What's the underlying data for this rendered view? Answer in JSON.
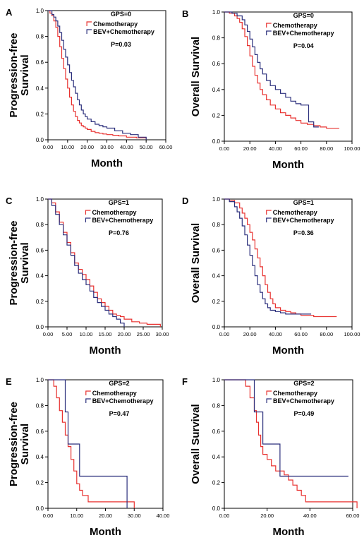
{
  "legend": {
    "chemo": "Chemotherapy",
    "bev": "BEV+Chemotherapy"
  },
  "colors": {
    "chemo": "#e8312f",
    "bev": "#2b2f7c",
    "axis": "#000000"
  },
  "chart_data": [
    {
      "panel": "A",
      "type": "line",
      "title": "GPS=0",
      "pvalue": "P=0.03",
      "xlabel": "Month",
      "ylabel": [
        "Progression-free",
        "Survival"
      ],
      "xlim": [
        0,
        60
      ],
      "ylim": [
        0,
        1
      ],
      "xticks": [
        "0.00",
        "10.00",
        "20.00",
        "30.00",
        "40.00",
        "50.00",
        "60.00"
      ],
      "yticks": [
        "0.0",
        "0.2",
        "0.4",
        "0.6",
        "0.8",
        "1.0"
      ],
      "series": [
        {
          "name": "Chemotherapy",
          "x": [
            0,
            1,
            2,
            3,
            4,
            5,
            6,
            7,
            8,
            9,
            10,
            11,
            12,
            13,
            14,
            15,
            16,
            17,
            18,
            19,
            20,
            22,
            24,
            26,
            28,
            30,
            33,
            36,
            40,
            45,
            50
          ],
          "y": [
            1.0,
            0.98,
            0.96,
            0.92,
            0.87,
            0.8,
            0.72,
            0.63,
            0.55,
            0.47,
            0.4,
            0.33,
            0.27,
            0.22,
            0.18,
            0.15,
            0.13,
            0.11,
            0.1,
            0.09,
            0.08,
            0.065,
            0.055,
            0.05,
            0.045,
            0.04,
            0.035,
            0.03,
            0.02,
            0.015,
            0.01
          ]
        },
        {
          "name": "BEV+Chemotherapy",
          "x": [
            0,
            2,
            3,
            4,
            5,
            6,
            7,
            8,
            9,
            10,
            11,
            12,
            13,
            14,
            15,
            16,
            17,
            18,
            19,
            20,
            22,
            24,
            26,
            28,
            30,
            34,
            38,
            42,
            46,
            50
          ],
          "y": [
            1.0,
            0.97,
            0.95,
            0.92,
            0.88,
            0.83,
            0.77,
            0.7,
            0.64,
            0.58,
            0.52,
            0.46,
            0.41,
            0.36,
            0.31,
            0.27,
            0.23,
            0.2,
            0.18,
            0.16,
            0.14,
            0.12,
            0.11,
            0.1,
            0.09,
            0.07,
            0.05,
            0.04,
            0.02,
            0.0
          ]
        }
      ]
    },
    {
      "panel": "B",
      "type": "line",
      "title": "GPS=0",
      "pvalue": "P=0.04",
      "xlabel": "Month",
      "ylabel": [
        "Overall Survival"
      ],
      "xlim": [
        0,
        100
      ],
      "ylim": [
        0,
        1
      ],
      "xticks": [
        "0.00",
        "20.00",
        "40.00",
        "60.00",
        "80.00",
        "100.00"
      ],
      "yticks": [
        "0.0",
        "0.2",
        "0.4",
        "0.6",
        "0.8",
        "1.0"
      ],
      "series": [
        {
          "name": "Chemotherapy",
          "x": [
            0,
            4,
            8,
            10,
            12,
            14,
            16,
            18,
            20,
            22,
            24,
            26,
            28,
            30,
            33,
            36,
            40,
            44,
            48,
            52,
            56,
            60,
            65,
            70,
            75,
            80,
            90
          ],
          "y": [
            1.0,
            0.99,
            0.97,
            0.95,
            0.92,
            0.87,
            0.81,
            0.74,
            0.66,
            0.58,
            0.51,
            0.45,
            0.4,
            0.36,
            0.32,
            0.28,
            0.25,
            0.22,
            0.2,
            0.18,
            0.16,
            0.14,
            0.13,
            0.12,
            0.11,
            0.1,
            0.1
          ]
        },
        {
          "name": "BEV+Chemotherapy",
          "x": [
            0,
            6,
            10,
            14,
            16,
            18,
            20,
            22,
            24,
            26,
            28,
            30,
            33,
            36,
            40,
            44,
            48,
            52,
            56,
            60,
            64,
            66,
            68,
            70,
            74
          ],
          "y": [
            1.0,
            0.99,
            0.97,
            0.94,
            0.9,
            0.85,
            0.79,
            0.73,
            0.67,
            0.61,
            0.56,
            0.52,
            0.47,
            0.43,
            0.4,
            0.37,
            0.34,
            0.31,
            0.29,
            0.28,
            0.28,
            0.15,
            0.15,
            0.11,
            0.11
          ]
        }
      ]
    },
    {
      "panel": "C",
      "type": "line",
      "title": "GPS=1",
      "pvalue": "P=0.76",
      "xlabel": "Month",
      "ylabel": [
        "Progression-free",
        "Survival"
      ],
      "xlim": [
        0,
        30
      ],
      "ylim": [
        0,
        1
      ],
      "xticks": [
        "0.00",
        "5.00",
        "10.00",
        "15.00",
        "20.00",
        "25.00",
        "30.00"
      ],
      "yticks": [
        "0.0",
        "0.2",
        "0.4",
        "0.6",
        "0.8",
        "1.0"
      ],
      "series": [
        {
          "name": "Chemotherapy",
          "x": [
            0,
            1,
            2,
            3,
            4,
            5,
            6,
            7,
            8,
            9,
            10,
            11,
            12,
            13,
            14,
            15,
            16,
            17,
            18,
            19,
            20,
            22,
            24,
            26,
            28,
            29.5
          ],
          "y": [
            1.0,
            0.97,
            0.9,
            0.82,
            0.74,
            0.66,
            0.58,
            0.5,
            0.45,
            0.41,
            0.37,
            0.32,
            0.27,
            0.22,
            0.19,
            0.16,
            0.13,
            0.1,
            0.09,
            0.08,
            0.06,
            0.04,
            0.03,
            0.02,
            0.02,
            0.0
          ]
        },
        {
          "name": "BEV+Chemotherapy",
          "x": [
            0,
            1,
            2,
            3,
            4,
            5,
            6,
            7,
            8,
            9,
            10,
            11,
            12,
            13,
            14,
            15,
            16,
            17,
            18,
            19,
            20
          ],
          "y": [
            1.0,
            0.95,
            0.88,
            0.8,
            0.72,
            0.64,
            0.56,
            0.48,
            0.42,
            0.37,
            0.33,
            0.28,
            0.23,
            0.19,
            0.16,
            0.13,
            0.1,
            0.08,
            0.06,
            0.03,
            0.0
          ]
        }
      ]
    },
    {
      "panel": "D",
      "type": "line",
      "title": "GPS=1",
      "pvalue": "P=0.36",
      "xlabel": "Month",
      "ylabel": [
        "Overall Survival"
      ],
      "xlim": [
        0,
        100
      ],
      "ylim": [
        0,
        1
      ],
      "xticks": [
        "0.00",
        "20.00",
        "40.00",
        "60.00",
        "80.00",
        "100.00"
      ],
      "yticks": [
        "0.0",
        "0.2",
        "0.4",
        "0.6",
        "0.8",
        "1.0"
      ],
      "series": [
        {
          "name": "Chemotherapy",
          "x": [
            0,
            4,
            8,
            12,
            14,
            16,
            18,
            20,
            22,
            24,
            26,
            28,
            30,
            32,
            34,
            36,
            38,
            40,
            44,
            48,
            52,
            56,
            60,
            70,
            80,
            88
          ],
          "y": [
            1.0,
            0.99,
            0.97,
            0.93,
            0.89,
            0.85,
            0.8,
            0.74,
            0.68,
            0.61,
            0.54,
            0.47,
            0.4,
            0.33,
            0.27,
            0.22,
            0.18,
            0.15,
            0.13,
            0.12,
            0.11,
            0.1,
            0.09,
            0.08,
            0.08,
            0.08
          ]
        },
        {
          "name": "BEV+Chemotherapy",
          "x": [
            0,
            4,
            8,
            10,
            12,
            14,
            16,
            18,
            20,
            22,
            24,
            26,
            28,
            30,
            32,
            34,
            36,
            40,
            44,
            48,
            56,
            62,
            68
          ],
          "y": [
            1.0,
            0.98,
            0.94,
            0.9,
            0.85,
            0.79,
            0.72,
            0.64,
            0.56,
            0.48,
            0.4,
            0.33,
            0.27,
            0.22,
            0.18,
            0.15,
            0.13,
            0.12,
            0.11,
            0.1,
            0.1,
            0.1,
            0.1
          ]
        }
      ]
    },
    {
      "panel": "E",
      "type": "line",
      "title": "GPS=2",
      "pvalue": "P=0.47",
      "xlabel": "Month",
      "ylabel": [
        "Progression-free",
        "Survival"
      ],
      "xlim": [
        0,
        40
      ],
      "ylim": [
        0,
        1
      ],
      "xticks": [
        "0.00",
        "10.00",
        "20.00",
        "30.00",
        "40.00"
      ],
      "yticks": [
        "0.0",
        "0.2",
        "0.4",
        "0.6",
        "0.8",
        "1.0"
      ],
      "series": [
        {
          "name": "Chemotherapy",
          "x": [
            0,
            2,
            3,
            4,
            5,
            6,
            7,
            8,
            9,
            10,
            11,
            12,
            14,
            17,
            20,
            30
          ],
          "y": [
            1.0,
            0.95,
            0.86,
            0.76,
            0.67,
            0.57,
            0.48,
            0.38,
            0.29,
            0.19,
            0.14,
            0.1,
            0.05,
            0.05,
            0.05,
            0.0
          ]
        },
        {
          "name": "BEV+Chemotherapy",
          "x": [
            0,
            6,
            7,
            9,
            11,
            27,
            27.5
          ],
          "y": [
            1.0,
            0.75,
            0.5,
            0.5,
            0.25,
            0.25,
            0.0
          ]
        }
      ]
    },
    {
      "panel": "F",
      "type": "line",
      "title": "GPS=2",
      "pvalue": "P=0.49",
      "xlabel": "Month",
      "ylabel": [
        "Overall Survival"
      ],
      "xlim": [
        0,
        60
      ],
      "ylim": [
        0,
        1
      ],
      "xticks": [
        "0.00",
        "20.00",
        "40.00",
        "60.00"
      ],
      "yticks": [
        "0.0",
        "0.2",
        "0.4",
        "0.6",
        "0.8",
        "1.0"
      ],
      "series": [
        {
          "name": "Chemotherapy",
          "x": [
            0,
            10,
            12,
            14,
            15,
            16,
            17,
            18,
            20,
            22,
            24,
            28,
            30,
            32,
            34,
            36,
            38,
            44,
            50,
            60,
            62
          ],
          "y": [
            1.0,
            0.95,
            0.86,
            0.76,
            0.67,
            0.57,
            0.48,
            0.42,
            0.38,
            0.33,
            0.29,
            0.26,
            0.22,
            0.18,
            0.14,
            0.1,
            0.05,
            0.05,
            0.05,
            0.05,
            0.0
          ]
        },
        {
          "name": "BEV+Chemotherapy",
          "x": [
            0,
            10,
            14,
            18,
            22,
            26,
            30,
            58
          ],
          "y": [
            1.0,
            1.0,
            0.75,
            0.5,
            0.5,
            0.25,
            0.25,
            0.25
          ]
        }
      ]
    }
  ]
}
